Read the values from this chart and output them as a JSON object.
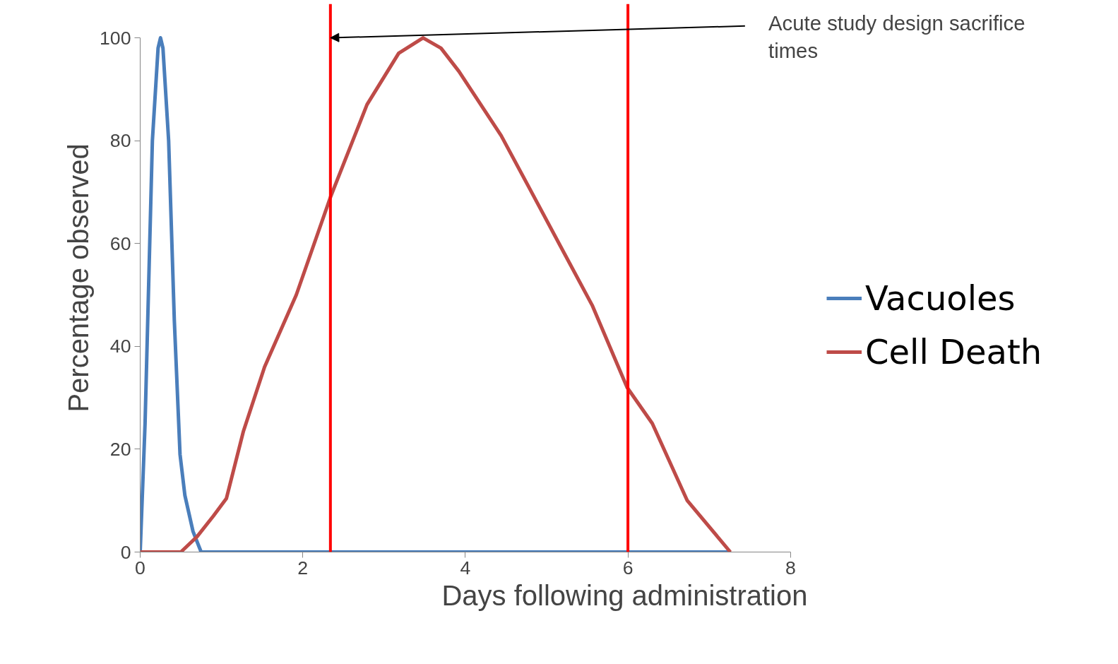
{
  "chart_data": {
    "type": "line",
    "xlabel": "Days following administration",
    "ylabel": "Percentage observed",
    "xlim": [
      0,
      8
    ],
    "ylim": [
      0,
      100
    ],
    "xticks": [
      0,
      2,
      4,
      6,
      8
    ],
    "yticks": [
      0,
      20,
      40,
      60,
      80,
      100
    ],
    "grid": false,
    "legend": "right",
    "marker": "none",
    "line_style": "solid",
    "series": [
      {
        "name": "Vacuoles",
        "color": "#4a7ebb",
        "x": [
          0,
          0.06,
          0.15,
          0.22,
          0.25,
          0.28,
          0.35,
          0.42,
          0.49,
          0.55,
          0.65,
          0.75,
          1.0,
          7.26
        ],
        "values": [
          0,
          25,
          80,
          98,
          100,
          98,
          80,
          45,
          19,
          11,
          4,
          0,
          0,
          0
        ]
      },
      {
        "name": "Cell Death",
        "color": "#be4b48",
        "x": [
          0,
          0.3,
          0.5,
          0.7,
          0.9,
          1.06,
          1.27,
          1.53,
          1.92,
          2.34,
          2.79,
          3.18,
          3.48,
          3.7,
          3.92,
          4.44,
          4.78,
          5.22,
          5.56,
          5.99,
          6.3,
          6.73,
          7.26
        ],
        "values": [
          0,
          0,
          0,
          3,
          7,
          10.4,
          23.5,
          36,
          50,
          69,
          87,
          97,
          100,
          98,
          93.5,
          81,
          71,
          58,
          48,
          32,
          25,
          10,
          0
        ]
      }
    ],
    "ref_lines": [
      {
        "axis": "x",
        "value": 2.34,
        "color": "#ff0000"
      },
      {
        "axis": "x",
        "value": 6.0,
        "color": "#ff0000"
      }
    ],
    "annotations": [
      {
        "text": "Acute study design sacrifice\ntimes",
        "x": 2.34,
        "y": 100
      }
    ]
  }
}
